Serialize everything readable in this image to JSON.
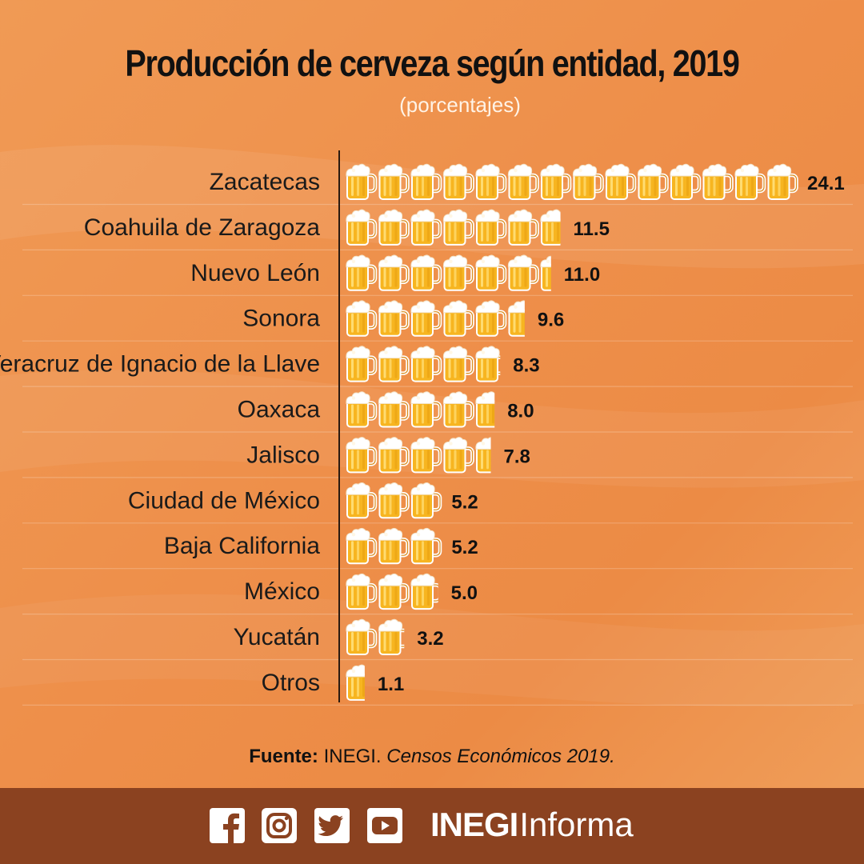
{
  "header": {
    "title": "Producción de cerveza según entidad, 2019",
    "subtitle": "(porcentajes)"
  },
  "chart_data": {
    "type": "bar",
    "orientation": "horizontal",
    "title": "Producción de cerveza según entidad, 2019",
    "subtitle": "(porcentajes)",
    "categories": [
      "Zacatecas",
      "Coahuila de Zaragoza",
      "Nuevo León",
      "Sonora",
      "Veracruz de Ignacio de la Llave",
      "Oaxaca",
      "Jalisco",
      "Ciudad de México",
      "Baja California",
      "México",
      "Yucatán",
      "Otros"
    ],
    "values": [
      24.1,
      11.5,
      11.0,
      9.6,
      8.3,
      8.0,
      7.8,
      5.2,
      5.2,
      5.0,
      3.2,
      1.1
    ],
    "value_labels": [
      "24.1",
      "11.5",
      "11.0",
      "9.6",
      "8.3",
      "8.0",
      "7.8",
      "5.2",
      "5.2",
      "5.0",
      "3.2",
      "1.1"
    ],
    "mark": "beer-mug-icon",
    "colors": {
      "beer": "#f7b520",
      "foam": "#ffffff",
      "outline": "#d98a1a",
      "axis": "#2a1a10"
    }
  },
  "source": {
    "label": "Fuente:",
    "org": " INEGI. ",
    "publication": "Censos Económicos 2019."
  },
  "footer": {
    "social_icons": [
      "facebook-icon",
      "instagram-icon",
      "twitter-icon",
      "youtube-icon"
    ],
    "brand_bold": "INEGI",
    "brand_light": "Informa",
    "background": "#8b4220"
  }
}
